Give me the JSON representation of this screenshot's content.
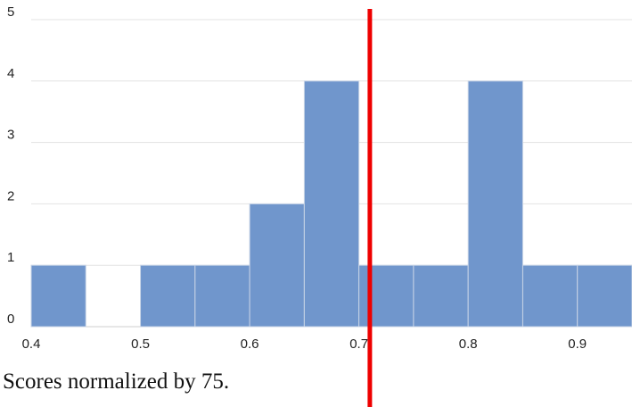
{
  "chart_data": {
    "type": "bar",
    "title": "",
    "xlabel": "",
    "ylabel": "",
    "bin_width": 0.05,
    "bins": [
      {
        "start": 0.4,
        "end": 0.45,
        "count": 1
      },
      {
        "start": 0.45,
        "end": 0.5,
        "count": 0
      },
      {
        "start": 0.5,
        "end": 0.55,
        "count": 1
      },
      {
        "start": 0.55,
        "end": 0.6,
        "count": 1
      },
      {
        "start": 0.6,
        "end": 0.65,
        "count": 2
      },
      {
        "start": 0.65,
        "end": 0.7,
        "count": 4
      },
      {
        "start": 0.7,
        "end": 0.75,
        "count": 1
      },
      {
        "start": 0.75,
        "end": 0.8,
        "count": 1
      },
      {
        "start": 0.8,
        "end": 0.85,
        "count": 4
      },
      {
        "start": 0.85,
        "end": 0.9,
        "count": 1
      },
      {
        "start": 0.9,
        "end": 0.95,
        "count": 1
      }
    ],
    "xlim": [
      0.4,
      0.95
    ],
    "ylim": [
      0,
      5
    ],
    "x_ticks": [
      "0.4",
      "0.5",
      "0.6",
      "0.7",
      "0.8",
      "0.9"
    ],
    "x_tick_values": [
      0.4,
      0.5,
      0.6,
      0.7,
      0.8,
      0.9
    ],
    "y_ticks": [
      "0",
      "1",
      "2",
      "3",
      "4",
      "5"
    ],
    "y_tick_values": [
      0,
      1,
      2,
      3,
      4,
      5
    ],
    "grid": true,
    "reference_line": {
      "x": 0.71
    },
    "colors": {
      "bar": "#7096cc",
      "bar_edge": "#c8d4e6",
      "reference_line": "#ee0000",
      "grid": "#e3e3e3"
    }
  },
  "caption": "Scores normalized by 75."
}
